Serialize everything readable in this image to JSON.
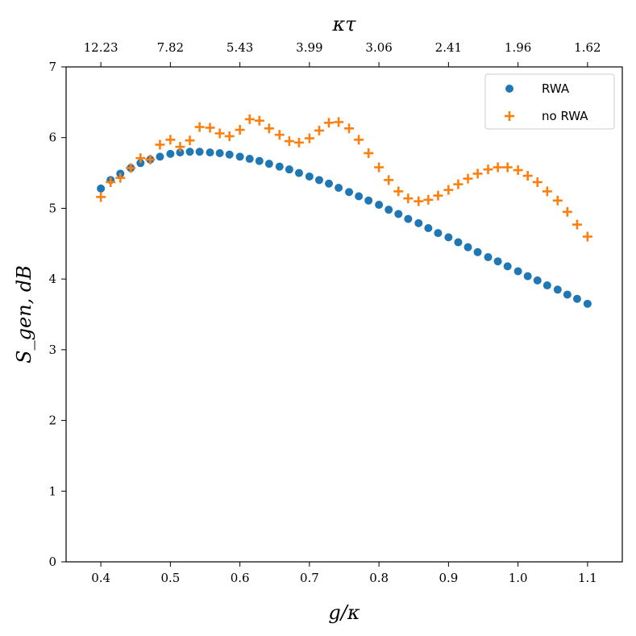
{
  "chart_data": {
    "type": "scatter",
    "xlabel": "g/κ",
    "ylabel": "S_gen, dB",
    "top_xlabel": "κτ",
    "xlim": [
      0.35,
      1.15
    ],
    "ylim": [
      0,
      7
    ],
    "x_ticks": [
      0.4,
      0.5,
      0.6,
      0.7,
      0.8,
      0.9,
      1.0,
      1.1
    ],
    "x_tick_labels": [
      "0.4",
      "0.5",
      "0.6",
      "0.7",
      "0.8",
      "0.9",
      "1.0",
      "1.1"
    ],
    "y_ticks": [
      0,
      1,
      2,
      3,
      4,
      5,
      6,
      7
    ],
    "y_tick_labels": [
      "0",
      "1",
      "2",
      "3",
      "4",
      "5",
      "6",
      "7"
    ],
    "top_ticks": [
      0.4,
      0.5,
      0.6,
      0.7,
      0.8,
      0.9,
      1.0,
      1.1
    ],
    "top_tick_labels": [
      "12.23",
      "7.82",
      "5.43",
      "3.99",
      "3.06",
      "2.41",
      "1.96",
      "1.62"
    ],
    "legend_position": "top-right",
    "colors": {
      "rwa": "#1f77b4",
      "no_rwa": "#ff7f0e"
    },
    "series": [
      {
        "name": "RWA",
        "marker": "circle",
        "x": [
          0.4,
          0.414,
          0.428,
          0.443,
          0.457,
          0.471,
          0.485,
          0.5,
          0.514,
          0.528,
          0.542,
          0.557,
          0.571,
          0.585,
          0.6,
          0.614,
          0.628,
          0.642,
          0.657,
          0.671,
          0.685,
          0.7,
          0.714,
          0.728,
          0.742,
          0.757,
          0.771,
          0.785,
          0.8,
          0.814,
          0.828,
          0.842,
          0.857,
          0.871,
          0.885,
          0.9,
          0.914,
          0.928,
          0.942,
          0.957,
          0.971,
          0.985,
          1.0,
          1.014,
          1.028,
          1.042,
          1.057,
          1.071,
          1.085,
          1.1
        ],
        "values": [
          5.28,
          5.4,
          5.49,
          5.57,
          5.64,
          5.69,
          5.73,
          5.77,
          5.79,
          5.8,
          5.8,
          5.79,
          5.78,
          5.76,
          5.73,
          5.7,
          5.67,
          5.63,
          5.59,
          5.55,
          5.5,
          5.45,
          5.4,
          5.35,
          5.29,
          5.23,
          5.17,
          5.11,
          5.05,
          4.98,
          4.92,
          4.85,
          4.79,
          4.72,
          4.65,
          4.59,
          4.52,
          4.45,
          4.38,
          4.31,
          4.25,
          4.18,
          4.11,
          4.04,
          3.98,
          3.91,
          3.85,
          3.78,
          3.72,
          3.65
        ]
      },
      {
        "name": "no RWA",
        "marker": "plus",
        "x": [
          0.4,
          0.414,
          0.428,
          0.443,
          0.457,
          0.471,
          0.485,
          0.5,
          0.514,
          0.528,
          0.542,
          0.557,
          0.571,
          0.585,
          0.6,
          0.614,
          0.628,
          0.642,
          0.657,
          0.671,
          0.685,
          0.7,
          0.714,
          0.728,
          0.742,
          0.757,
          0.771,
          0.785,
          0.8,
          0.814,
          0.828,
          0.842,
          0.857,
          0.871,
          0.885,
          0.9,
          0.914,
          0.928,
          0.942,
          0.957,
          0.971,
          0.985,
          1.0,
          1.014,
          1.028,
          1.042,
          1.057,
          1.071,
          1.085,
          1.1
        ],
        "values": [
          5.16,
          5.37,
          5.43,
          5.57,
          5.71,
          5.69,
          5.9,
          5.97,
          5.87,
          5.96,
          6.15,
          6.14,
          6.06,
          6.02,
          6.11,
          6.26,
          6.24,
          6.13,
          6.04,
          5.95,
          5.93,
          5.99,
          6.1,
          6.21,
          6.22,
          6.13,
          5.97,
          5.78,
          5.58,
          5.4,
          5.24,
          5.14,
          5.1,
          5.12,
          5.18,
          5.26,
          5.34,
          5.42,
          5.49,
          5.55,
          5.58,
          5.58,
          5.54,
          5.46,
          5.37,
          5.24,
          5.11,
          4.95,
          4.77,
          4.6
        ]
      }
    ]
  }
}
